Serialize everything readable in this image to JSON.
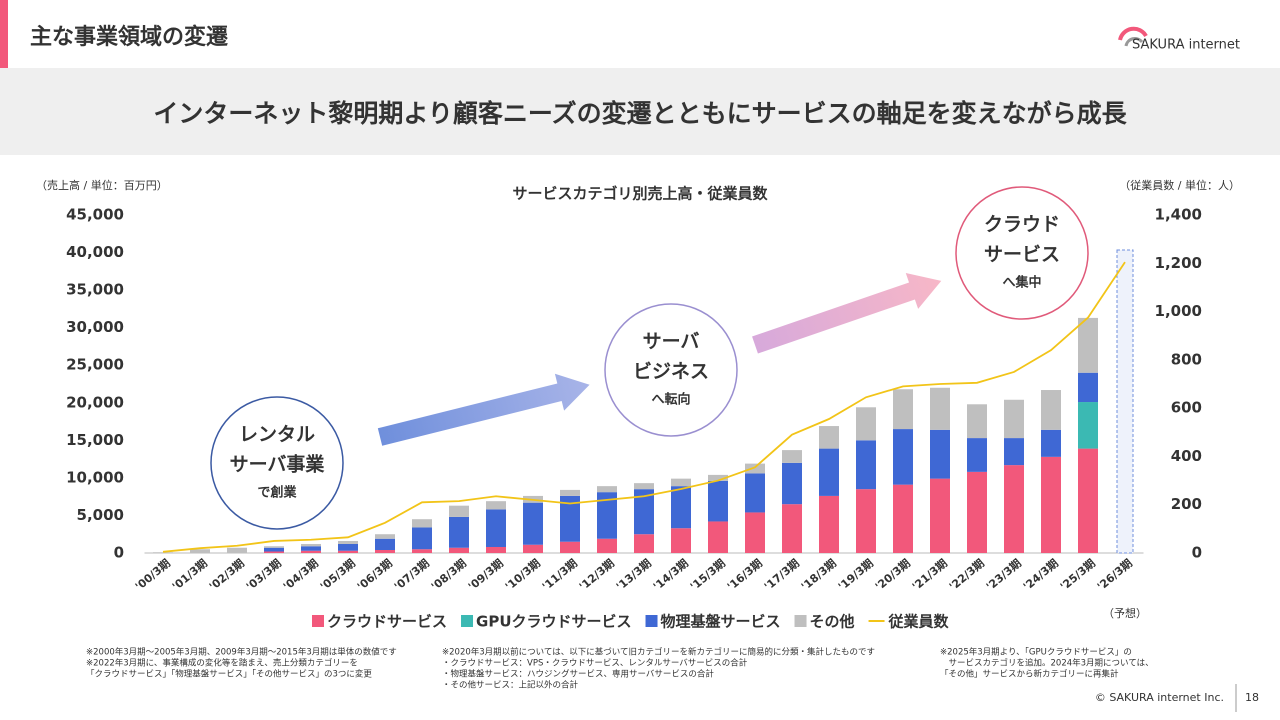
{
  "header": {
    "title": "主な事業領域の変遷",
    "logo": "SAKURA internet"
  },
  "headline": "インターネット黎明期より顧客ニーズの変遷とともにサービスの軸足を変えながら成長",
  "chart_data": {
    "type": "bar",
    "stacked": true,
    "title": "サービスカテゴリ別売上高・従業員数",
    "y_label": "（売上高 / 単位：百万円）",
    "y2_label": "（従業員数 / 単位：人）",
    "forecast_label": "（予想）",
    "categories": [
      "'00/3期",
      "'01/3期",
      "'02/3期",
      "'03/3期",
      "'04/3期",
      "'05/3期",
      "'06/3期",
      "'07/3期",
      "'08/3期",
      "'09/3期",
      "'10/3期",
      "'11/3期",
      "'12/3期",
      "'13/3期",
      "'14/3期",
      "'15/3期",
      "'16/3期",
      "'17/3期",
      "'18/3期",
      "'19/3期",
      "'20/3期",
      "'21/3期",
      "'22/3期",
      "'23/3期",
      "'24/3期",
      "'25/3期",
      "'26/3期"
    ],
    "series": [
      {
        "name": "クラウドサービス",
        "color": "#f2587b",
        "values": [
          0,
          0,
          0,
          200,
          300,
          300,
          400,
          500,
          700,
          800,
          1100,
          1500,
          1900,
          2500,
          3300,
          4200,
          5400,
          6500,
          7600,
          8500,
          9100,
          9900,
          10800,
          11700,
          12800,
          13900,
          null
        ]
      },
      {
        "name": "GPUクラウドサービス",
        "color": "#3bb9b3",
        "values": [
          0,
          0,
          0,
          0,
          0,
          0,
          0,
          0,
          0,
          0,
          0,
          0,
          0,
          0,
          0,
          0,
          0,
          0,
          0,
          0,
          0,
          0,
          0,
          0,
          0,
          6200,
          null
        ]
      },
      {
        "name": "物理基盤サービス",
        "color": "#3f68d4",
        "values": [
          0,
          0,
          0,
          500,
          600,
          900,
          1500,
          2900,
          4100,
          5000,
          5600,
          6100,
          6200,
          6000,
          5600,
          5400,
          5200,
          5500,
          6300,
          6500,
          7400,
          6500,
          4500,
          3600,
          3600,
          3900,
          null
        ]
      },
      {
        "name": "その他",
        "color": "#bfbfbf",
        "values": [
          100,
          500,
          700,
          200,
          300,
          400,
          600,
          1100,
          1500,
          1100,
          900,
          800,
          800,
          800,
          1000,
          800,
          1300,
          1700,
          3000,
          4400,
          5300,
          5600,
          4500,
          5100,
          5300,
          7300,
          null
        ]
      },
      {
        "name": "従業員数",
        "color": "#f2c418",
        "type": "line",
        "axis": "y2",
        "values": [
          5,
          20,
          30,
          50,
          55,
          65,
          125,
          210,
          215,
          235,
          220,
          205,
          220,
          235,
          265,
          300,
          355,
          490,
          555,
          645,
          690,
          700,
          705,
          750,
          840,
          975,
          1205
        ]
      }
    ],
    "ylim": [
      0,
      45000
    ],
    "yticks": [
      0,
      {
        "value": 5000,
        "label": "5,000"
      },
      {
        "value": 10000,
        "label": "10,000"
      },
      {
        "value": 15000,
        "label": "15,000"
      },
      {
        "value": 20000,
        "label": "20,000"
      },
      {
        "value": 25000,
        "label": "25,000"
      },
      {
        "value": 30000,
        "label": "30,000"
      },
      {
        "value": 35000,
        "label": "35,000"
      },
      {
        "value": 40000,
        "label": "40,000"
      },
      {
        "value": 45000,
        "label": "45,000"
      }
    ],
    "y2lim": [
      0,
      1400
    ],
    "y2ticks": [
      0,
      200,
      400,
      600,
      800,
      {
        "value": 1000,
        "label": "1,000"
      },
      {
        "value": 1200,
        "label": "1,200"
      },
      {
        "value": 1400,
        "label": "1,400"
      }
    ],
    "annotations": [
      {
        "lines": [
          "レンタル",
          "サーバ事業"
        ],
        "sub": "で創業"
      },
      {
        "lines": [
          "サーバ",
          "ビジネス"
        ],
        "sub": "へ転向"
      },
      {
        "lines": [
          "クラウド",
          "サービス"
        ],
        "sub": "へ集中"
      }
    ]
  },
  "notes": [
    [
      "※2000年3月期～2005年3月期、2009年3月期～2015年3月期は単体の数値です",
      "※2022年3月期に、事業構成の変化等を踏まえ、売上分類カテゴリーを",
      "「クラウドサービス」「物理基盤サービス」「その他サービス」の3つに変更"
    ],
    [
      "※2020年3月期以前については、以下に基づいて旧カテゴリーを新カテゴリーに簡易的に分類・集計したものです",
      "・クラウドサービス：VPS・クラウドサービス、レンタルサーバサービスの合計",
      "・物理基盤サービス：ハウジングサービス、専用サーバサービスの合計",
      "・その他サービス：上記以外の合計"
    ],
    [
      "※2025年3月期より、「GPUクラウドサービス」の",
      "　サービスカテゴリを追加。2024年3月期については、",
      "「その他」サービスから新カテゴリーに再集計"
    ]
  ],
  "footer": {
    "copyright": "© SAKURA internet Inc.",
    "page": "18"
  }
}
